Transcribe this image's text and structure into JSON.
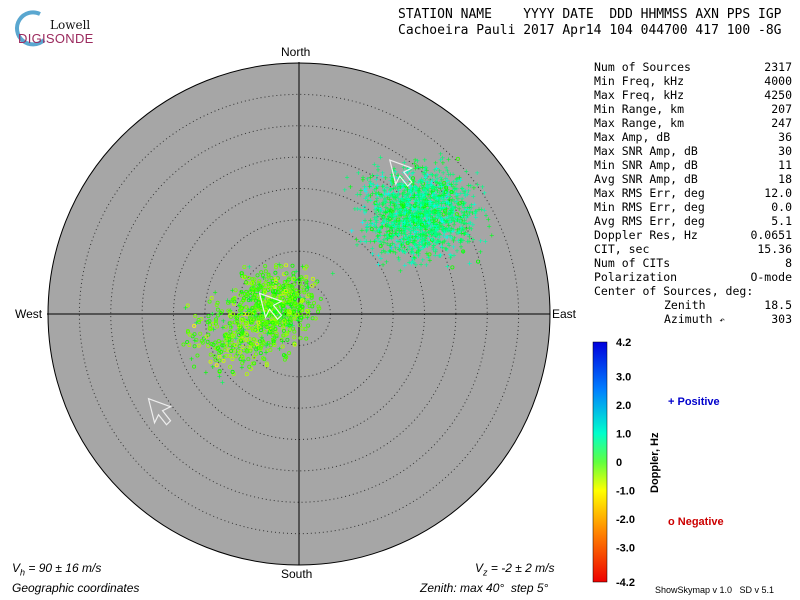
{
  "logo": {
    "top": "Lowell",
    "bottom": "DIGISONDE"
  },
  "header": {
    "line1": "STATION NAME    YYYY DATE  DDD HHMMSS AXN PPS IGP",
    "line2": "Cachoeira Pauli 2017 Apr14 104 044700 417 100 -8G"
  },
  "stats": [
    {
      "label": "Num of Sources",
      "value": "2317"
    },
    {
      "label": "Min Freq, kHz",
      "value": "4000"
    },
    {
      "label": "Max Freq, kHz",
      "value": "4250"
    },
    {
      "label": "Min Range, km",
      "value": "207"
    },
    {
      "label": "Max Range, km",
      "value": "247"
    },
    {
      "label": "Max Amp, dB",
      "value": "36"
    },
    {
      "label": "Max SNR Amp, dB",
      "value": "30"
    },
    {
      "label": "Min SNR Amp, dB",
      "value": "11"
    },
    {
      "label": "Avg SNR Amp, dB",
      "value": "18"
    },
    {
      "label": "Max RMS Err, deg",
      "value": "12.0"
    },
    {
      "label": "Min RMS Err, deg",
      "value": "0.0"
    },
    {
      "label": "Avg RMS Err, deg",
      "value": "5.1"
    },
    {
      "label": "Doppler Res, Hz",
      "value": "0.0651"
    },
    {
      "label": "CIT, sec",
      "value": "15.36"
    },
    {
      "label": "Num of CITs",
      "value": "8"
    },
    {
      "label": "Polarization",
      "value": "O-mode"
    }
  ],
  "center": {
    "title": "Center of Sources, deg:",
    "zenith_label": "Zenith",
    "zenith_value": "18.5",
    "azimuth_label": "Azimuth",
    "azimuth_value": "303"
  },
  "compass": {
    "north": "North",
    "south": "South",
    "east": "East",
    "west": "West"
  },
  "footer": {
    "vh_prefix": "V",
    "vh_sub": "h",
    "vh_text": " = 90 ± 16 m/s",
    "vz_prefix": "V",
    "vz_sub": "z",
    "vz_text": " = -2 ± 2 m/s",
    "coords": "Geographic coordinates",
    "zenith_info": "Zenith: max 40°  step 5°",
    "version": "ShowSkymap v 1.0   SD v 5.1"
  },
  "colorbar": {
    "label": "Doppler, Hz",
    "ticks": [
      "4.2",
      "3.0",
      "2.0",
      "1.0",
      "0",
      "-1.0",
      "-2.0",
      "-3.0",
      "-4.2"
    ],
    "min": -4.2,
    "max": 4.2
  },
  "legend": {
    "positive": "+ Positive",
    "negative": "o Negative",
    "positive_color": "#0000cc",
    "negative_color": "#cc0000"
  },
  "colors": {
    "plot_bg": "#a6a6a6"
  },
  "chart_data": {
    "type": "scatter",
    "subtype": "skymap-polar",
    "r_max_deg": 40,
    "r_step_deg": 5,
    "grid": true,
    "clusters": [
      {
        "azimuth_deg": 50,
        "zenith_deg": 25,
        "spread_deg": 8,
        "count": 1500,
        "doppler_mean": 1.0
      },
      {
        "azimuth_deg": 300,
        "zenith_deg": 4,
        "spread_deg": 6,
        "count": 500,
        "doppler_mean": -0.5
      },
      {
        "azimuth_deg": 250,
        "zenith_deg": 10,
        "spread_deg": 7,
        "count": 317,
        "doppler_mean": -0.6
      }
    ],
    "velocity_arrows": [
      {
        "azimuth_deg": 35,
        "zenith_deg": 28
      },
      {
        "azimuth_deg": 290,
        "zenith_deg": 5
      },
      {
        "azimuth_deg": 236,
        "zenith_deg": 27
      }
    ]
  }
}
